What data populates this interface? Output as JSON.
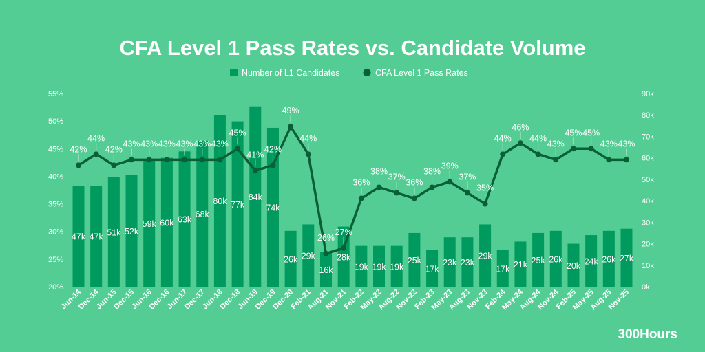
{
  "chart_data": {
    "type": "bar+line",
    "title": "CFA Level 1 Pass Rates vs. Candidate Volume",
    "legend_position": "top-center",
    "categories": [
      "Jun-14",
      "Dec-14",
      "Jun-15",
      "Dec-15",
      "Jun-16",
      "Dec-16",
      "Jun-17",
      "Dec-17",
      "Jun-18",
      "Dec-18",
      "Jun-19",
      "Dec-19",
      "Dec-20",
      "Feb-21",
      "Aug-21",
      "Nov-21",
      "Feb-22",
      "May-22",
      "Aug-22",
      "Nov-22",
      "Feb-23",
      "May-23",
      "Aug-23",
      "Nov-23",
      "Feb-24",
      "May-24",
      "Aug-24",
      "Nov-24",
      "Feb-25",
      "May-25",
      "Aug-25",
      "Nov-25"
    ],
    "series": [
      {
        "name": "Number of L1 Candidates",
        "type": "bar",
        "axis": "right",
        "color": "#009a5f",
        "values": [
          47,
          47,
          51,
          52,
          59,
          60,
          63,
          68,
          80,
          77,
          84,
          74,
          26,
          29,
          16,
          28,
          19,
          19,
          19,
          25,
          17,
          23,
          23,
          29,
          17,
          21,
          25,
          26,
          20,
          24,
          26,
          27
        ],
        "unit": "k"
      },
      {
        "name": "CFA Level 1 Pass Rates",
        "type": "line",
        "axis": "left",
        "color": "#0b5f36",
        "values": [
          42,
          44,
          42,
          43,
          43,
          43,
          43,
          43,
          43,
          45,
          41,
          42,
          49,
          44,
          26,
          27,
          36,
          38,
          37,
          36,
          38,
          39,
          37,
          35,
          44,
          46,
          44,
          43,
          45,
          45,
          43,
          43
        ],
        "unit": "%"
      }
    ],
    "left_axis": {
      "range": [
        20,
        55
      ],
      "ticks": [
        "20%",
        "25%",
        "30%",
        "35%",
        "40%",
        "45%",
        "50%",
        "55%"
      ]
    },
    "right_axis": {
      "range": [
        0,
        90
      ],
      "ticks": [
        "0k",
        "10k",
        "20k",
        "30k",
        "40k",
        "50k",
        "60k",
        "70k",
        "80k",
        "90k"
      ]
    },
    "grid": false
  },
  "branding": {
    "logo": "300Hours"
  }
}
